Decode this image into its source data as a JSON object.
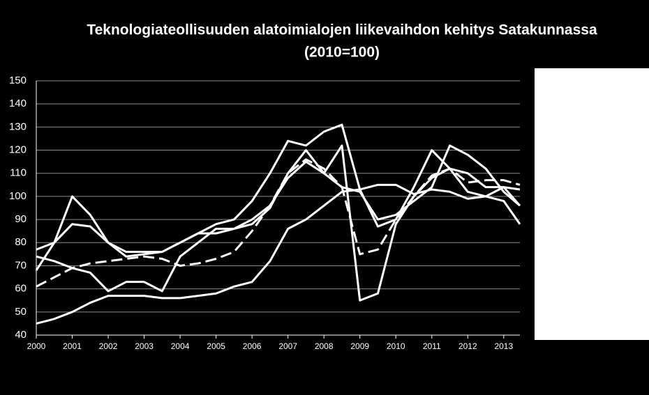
{
  "chart_data": {
    "type": "line",
    "title": "Teknologiateollisuuden alatoimialojen liikevaihdon kehitys Satakunnassa",
    "subtitle": "(2010=100)",
    "x": [
      2000,
      2000.5,
      2001,
      2001.5,
      2002,
      2002.5,
      2003,
      2003.5,
      2004,
      2004.5,
      2005,
      2005.5,
      2006,
      2006.5,
      2007,
      2007.5,
      2008,
      2008.5,
      2009,
      2009.5,
      2010,
      2010.5,
      2011,
      2011.5,
      2012,
      2012.5,
      2013,
      2013.45
    ],
    "xlim": [
      2000,
      2013.45
    ],
    "xticks": [
      2000,
      2001,
      2002,
      2003,
      2004,
      2005,
      2006,
      2007,
      2008,
      2009,
      2010,
      2011,
      2012,
      2013
    ],
    "ylim": [
      40,
      150
    ],
    "yticks": [
      40,
      50,
      60,
      70,
      80,
      90,
      100,
      110,
      120,
      130,
      140,
      150
    ],
    "grid": true,
    "series": [
      {
        "color": "#ffffff",
        "dashed": false,
        "values": [
          45,
          47,
          50,
          54,
          57,
          57,
          57,
          56,
          56,
          57,
          58,
          61,
          63,
          72,
          86,
          90,
          96,
          102,
          103,
          105,
          105,
          101,
          103,
          102,
          99,
          100,
          104,
          103
        ]
      },
      {
        "color": "#ffffff",
        "dashed": false,
        "values": [
          74,
          72,
          69,
          67,
          59,
          63,
          63,
          59,
          74,
          80,
          86,
          86,
          88,
          95,
          110,
          120,
          110,
          122,
          55,
          58,
          88,
          100,
          108,
          112,
          102,
          100,
          98,
          88
        ]
      },
      {
        "color": "#ffffff",
        "dashed": false,
        "values": [
          68,
          80,
          100,
          92,
          80,
          76,
          76,
          76,
          80,
          84,
          88,
          90,
          98,
          110,
          124,
          122,
          128,
          131,
          103,
          87,
          90,
          104,
          120,
          112,
          110,
          104,
          104,
          96
        ]
      },
      {
        "color": "#ffffff",
        "dashed": false,
        "values": [
          77,
          80,
          88,
          87,
          80,
          74,
          75,
          76,
          80,
          84,
          84,
          86,
          90,
          96,
          108,
          115,
          110,
          104,
          102,
          90,
          92,
          98,
          104,
          122,
          118,
          112,
          102,
          96
        ]
      },
      {
        "color": "#ffffff",
        "dashed": true,
        "values": [
          61,
          65,
          69,
          71,
          72,
          73,
          74,
          73,
          70,
          71,
          73,
          76,
          85,
          96,
          110,
          116,
          112,
          104,
          75,
          77,
          90,
          100,
          109,
          112,
          106,
          107,
          107,
          105
        ]
      }
    ]
  }
}
